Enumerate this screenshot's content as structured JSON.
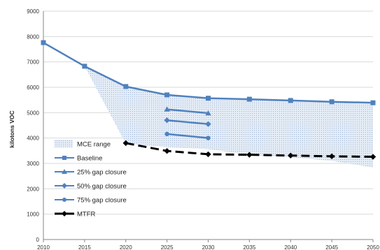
{
  "chart_data": {
    "type": "line",
    "title": "",
    "xlabel": "",
    "ylabel": "kilotons VOC",
    "x": [
      2010,
      2015,
      2020,
      2025,
      2030,
      2035,
      2040,
      2045,
      2050
    ],
    "xlim": [
      2010,
      2050
    ],
    "ylim": [
      0,
      9000
    ],
    "yticks": [
      0,
      1000,
      2000,
      3000,
      4000,
      5000,
      6000,
      7000,
      8000,
      9000
    ],
    "grid": "horizontal",
    "legend_position": "left",
    "series": [
      {
        "name": "MCE range",
        "kind": "band",
        "color": "#c9d9ec",
        "x": [
          2015,
          2020,
          2025,
          2030,
          2035,
          2040,
          2045,
          2050
        ],
        "upper": [
          6830,
          6030,
          5700,
          5570,
          5530,
          5480,
          5430,
          5390
        ],
        "lower": [
          6830,
          3780,
          3640,
          3560,
          3340,
          3240,
          3100,
          2840
        ]
      },
      {
        "name": "Baseline",
        "kind": "line",
        "color": "#4f81bd",
        "marker": "square",
        "x": [
          2010,
          2015,
          2020,
          2025,
          2030,
          2035,
          2040,
          2045,
          2050
        ],
        "y": [
          7760,
          6830,
          6030,
          5700,
          5570,
          5530,
          5480,
          5430,
          5390
        ]
      },
      {
        "name": "25% gap closure",
        "kind": "line",
        "color": "#4f81bd",
        "marker": "triangle",
        "x": [
          2025,
          2030
        ],
        "y": [
          5130,
          4980
        ]
      },
      {
        "name": "50% gap closure",
        "kind": "line",
        "color": "#4f81bd",
        "marker": "diamond",
        "x": [
          2025,
          2030
        ],
        "y": [
          4700,
          4550
        ]
      },
      {
        "name": "75% gap closure",
        "kind": "line",
        "color": "#4f81bd",
        "marker": "circle",
        "x": [
          2025,
          2030
        ],
        "y": [
          4160,
          4000
        ]
      },
      {
        "name": "MTFR",
        "kind": "line",
        "color": "#000000",
        "marker": "diamond",
        "dashed": true,
        "x": [
          2020,
          2025,
          2030,
          2035,
          2040,
          2045,
          2050
        ],
        "y": [
          3800,
          3490,
          3360,
          3340,
          3310,
          3280,
          3260
        ]
      }
    ]
  }
}
